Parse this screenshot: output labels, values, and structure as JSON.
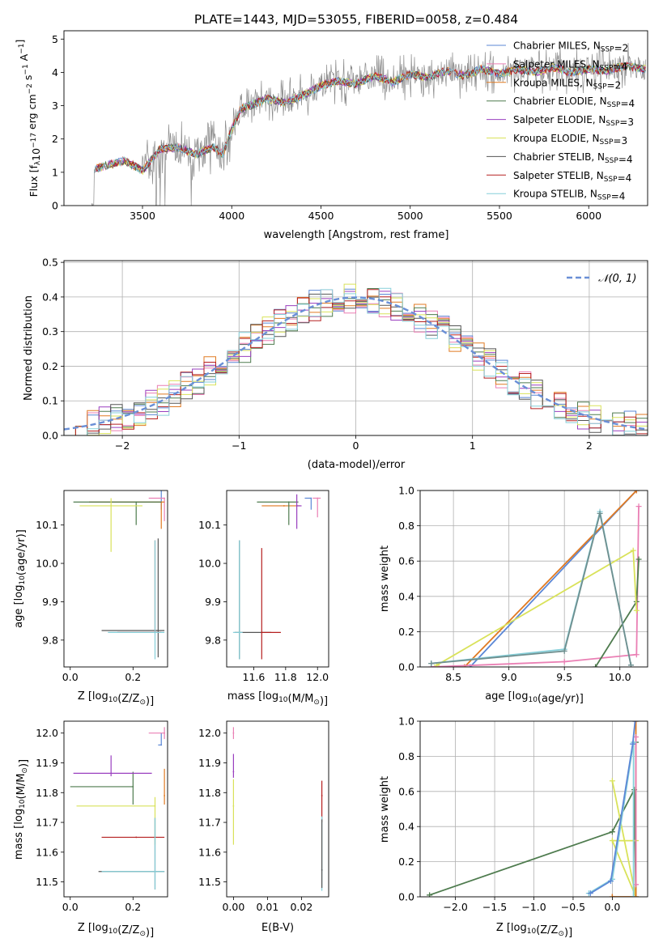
{
  "figure": {
    "title": "PLATE=1443, MJD=53055, FIBERID=0058, z=0.484"
  },
  "legend_models": [
    {
      "name": "Chabrier MILES, N",
      "sub": "SSP",
      "tail": "=2",
      "color": "#5b87d6"
    },
    {
      "name": "Salpeter MILES, N",
      "sub": "SSP",
      "tail": "=4",
      "color": "#ea7fb4"
    },
    {
      "name": "Kroupa MILES, N",
      "sub": "SSP",
      "tail": "=2",
      "color": "#e07a22"
    },
    {
      "name": "Chabrier ELODIE, N",
      "sub": "SSP",
      "tail": "=4",
      "color": "#4e7b4e"
    },
    {
      "name": "Salpeter ELODIE, N",
      "sub": "SSP",
      "tail": "=3",
      "color": "#9a3fbf"
    },
    {
      "name": "Kroupa ELODIE, N",
      "sub": "SSP",
      "tail": "=3",
      "color": "#d9e25a"
    },
    {
      "name": "Chabrier STELIB, N",
      "sub": "SSP",
      "tail": "=4",
      "color": "#555555"
    },
    {
      "name": "Salpeter STELIB, N",
      "sub": "SSP",
      "tail": "=4",
      "color": "#b52020"
    },
    {
      "name": "Kroupa STELIB, N",
      "sub": "SSP",
      "tail": "=4",
      "color": "#86cfd9"
    }
  ],
  "chart_data": [
    {
      "id": "spectrum",
      "type": "line",
      "xlabel": "wavelength [Angstrom, rest frame]",
      "ylabel_main": "Flux [f",
      "ylabel_sub": "λ",
      "ylabel_mid": "10",
      "ylabel_sup1": "−17",
      "ylabel_rest": " erg cm",
      "ylabel_sup2": "−2",
      "ylabel_s": " s",
      "ylabel_sup3": "−1",
      "ylabel_end": " A",
      "ylabel_sup4": "−1",
      "ylabel_close": "]",
      "xlim": [
        3060,
        6330
      ],
      "ylim": [
        0,
        5.25
      ],
      "xticks": [
        3500,
        4000,
        4500,
        5000,
        5500,
        6000
      ],
      "yticks": [
        0,
        1,
        2,
        3,
        4,
        5
      ],
      "model_x": [
        3230,
        3300,
        3400,
        3500,
        3600,
        3700,
        3800,
        3900,
        3950,
        4000,
        4050,
        4100,
        4200,
        4300,
        4400,
        4500,
        4600,
        4700,
        4800,
        4900,
        5000,
        5100,
        5200,
        5300,
        5400,
        5500,
        5600,
        5700,
        5800,
        5900,
        6000,
        6100,
        6200,
        6300
      ],
      "model_y": [
        1.1,
        1.2,
        1.35,
        1.05,
        1.7,
        1.75,
        1.55,
        1.75,
        1.55,
        2.3,
        2.9,
        3.0,
        3.2,
        3.1,
        3.3,
        3.6,
        3.75,
        3.65,
        3.9,
        3.7,
        3.95,
        3.85,
        4.05,
        3.9,
        4.1,
        3.95,
        4.1,
        4.0,
        4.15,
        4.0,
        4.1,
        4.05,
        4.2,
        4.1
      ]
    },
    {
      "id": "residuals",
      "type": "step",
      "xlabel": "(data-model)/error",
      "ylabel": "Normed distribution",
      "legend": "𝒩(0, 1)",
      "xlim": [
        -2.5,
        2.5
      ],
      "ylim": [
        0,
        0.505
      ],
      "xticks": [
        -2,
        -1,
        0,
        1,
        2
      ],
      "xticklabels": [
        "−2",
        "−1",
        "0",
        "1",
        "2"
      ],
      "yticks": [
        0,
        0.1,
        0.2,
        0.3,
        0.4,
        0.5
      ],
      "yticklabels": [
        "0.0",
        "0.1",
        "0.2",
        "0.3",
        "0.4",
        "0.5"
      ],
      "bin_width": 0.1
    },
    {
      "id": "age_vs_Z",
      "type": "errorbar",
      "xlabel": "Z [log",
      "xlabel_sub": "10",
      "xlabel_rest": "(Z/Z",
      "xlabel_sub2": "⊙",
      "xlabel_close": ")]",
      "ylabel": "age  [log",
      "ylabel_sub": "10",
      "ylabel_rest": "(age/yr)]",
      "xlim": [
        -0.02,
        0.31
      ],
      "ylim": [
        9.73,
        10.19
      ],
      "xticks": [
        0.0,
        0.2
      ],
      "xticklabels": [
        "0.0",
        "0.2"
      ],
      "yticks": [
        9.8,
        9.9,
        10.0,
        10.1
      ],
      "yticklabels": [
        "9.8",
        "9.9",
        "10.0",
        "10.1"
      ],
      "points": [
        {
          "x": 0.29,
          "y": 10.16,
          "xerr": [
            0.23,
            0.0
          ],
          "yerr": [
            0.02,
            0.03
          ],
          "color": "#5b87d6"
        },
        {
          "x": 0.3,
          "y": 10.17,
          "xerr": [
            0.05,
            0.0
          ],
          "yerr": [
            0.06,
            0.0
          ],
          "color": "#ea7fb4"
        },
        {
          "x": 0.29,
          "y": 10.16,
          "xerr": [
            0.23,
            0.01
          ],
          "yerr": [
            0.07,
            0.0
          ],
          "color": "#e07a22"
        },
        {
          "x": 0.21,
          "y": 10.16,
          "xerr": [
            0.2,
            0.08
          ],
          "yerr": [
            0.06,
            0.0
          ],
          "color": "#4e7b4e"
        },
        {
          "x": 0.28,
          "y": 9.825,
          "xerr": [
            0.18,
            0.02
          ],
          "yerr": [
            0.07,
            0.24
          ],
          "color": "#555555"
        },
        {
          "x": 0.27,
          "y": 9.82,
          "xerr": [
            0.12,
            0.02
          ],
          "yerr": [
            0.0,
            0.24
          ],
          "color": "#b52020"
        },
        {
          "x": 0.13,
          "y": 10.15,
          "xerr": [
            0.1,
            0.1
          ],
          "yerr": [
            0.12,
            0.02
          ],
          "color": "#d9e25a"
        },
        {
          "x": 0.27,
          "y": 9.82,
          "xerr": [
            0.15,
            0.03
          ],
          "yerr": [
            0.07,
            0.24
          ],
          "color": "#86cfd9"
        }
      ]
    },
    {
      "id": "age_vs_mass",
      "type": "errorbar",
      "xlabel": "mass [log",
      "xlabel_sub": "10",
      "xlabel_rest": "(M/M",
      "xlabel_sub2": "⊙",
      "xlabel_close": ")]",
      "xlim": [
        11.43,
        12.07
      ],
      "ylim": [
        9.73,
        10.19
      ],
      "xticks": [
        11.6,
        11.8,
        12.0
      ],
      "xticklabels": [
        "11.6",
        "11.8",
        "12.0"
      ],
      "yticks": [
        9.8,
        9.9,
        10.0,
        10.1
      ],
      "yticklabels": [
        "9.8",
        "9.9",
        "10.0",
        "10.1"
      ],
      "points": [
        {
          "x": 11.96,
          "y": 10.17,
          "xerr": [
            0.04,
            0.0
          ],
          "yerr": [
            0.03,
            0.0
          ],
          "color": "#5b87d6"
        },
        {
          "x": 12.0,
          "y": 10.17,
          "xerr": [
            0.03,
            0.02
          ],
          "yerr": [
            0.05,
            0.0
          ],
          "color": "#ea7fb4"
        },
        {
          "x": 11.79,
          "y": 10.15,
          "xerr": [
            0.14,
            0.1
          ],
          "yerr": [
            0.0,
            0.0
          ],
          "color": "#e07a22"
        },
        {
          "x": 11.82,
          "y": 10.16,
          "xerr": [
            0.2,
            0.06
          ],
          "yerr": [
            0.06,
            0.0
          ],
          "color": "#4e7b4e"
        },
        {
          "x": 11.87,
          "y": 10.15,
          "xerr": [
            0.0,
            0.03
          ],
          "yerr": [
            0.06,
            0.03
          ],
          "color": "#9a3fbf"
        },
        {
          "x": 11.51,
          "y": 9.82,
          "xerr": [
            0.03,
            0.2
          ],
          "yerr": [
            0.07,
            0.24
          ],
          "color": "#555555"
        },
        {
          "x": 11.65,
          "y": 9.82,
          "xerr": [
            0.0,
            0.12
          ],
          "yerr": [
            0.07,
            0.22
          ],
          "color": "#b52020"
        },
        {
          "x": 11.51,
          "y": 9.82,
          "xerr": [
            0.04,
            0.02
          ],
          "yerr": [
            0.07,
            0.24
          ],
          "color": "#86cfd9"
        }
      ]
    },
    {
      "id": "weight_vs_age",
      "type": "line",
      "xlabel": "age  [log",
      "xlabel_sub": "10",
      "xlabel_rest": "(age/yr)]",
      "ylabel": "mass weight",
      "xlim": [
        8.2,
        10.25
      ],
      "ylim": [
        0,
        1.0
      ],
      "xticks": [
        8.5,
        9.0,
        9.5,
        10.0
      ],
      "xticklabels": [
        "8.5",
        "9.0",
        "9.5",
        "10.0"
      ],
      "yticks": [
        0,
        0.2,
        0.4,
        0.6,
        0.8,
        1.0
      ],
      "yticklabels": [
        "0.0",
        "0.2",
        "0.4",
        "0.6",
        "0.8",
        "1.0"
      ],
      "series": [
        {
          "color": "#5b87d6",
          "x": [
            8.65,
            10.15
          ],
          "y": [
            0.0,
            1.0
          ]
        },
        {
          "color": "#e07a22",
          "x": [
            8.6,
            10.15
          ],
          "y": [
            0.0,
            1.0
          ]
        },
        {
          "color": "#ea7fb4",
          "x": [
            8.3,
            9.5,
            10.15,
            10.17
          ],
          "y": [
            0.0,
            0.03,
            0.07,
            0.91
          ]
        },
        {
          "color": "#4e7b4e",
          "x": [
            9.78,
            10.15,
            10.17
          ],
          "y": [
            0.0,
            0.37,
            0.61
          ]
        },
        {
          "color": "#d9e25a",
          "x": [
            8.35,
            10.12,
            10.15
          ],
          "y": [
            0.01,
            0.66,
            0.32
          ]
        },
        {
          "color": "#86cfd9",
          "x": [
            8.3,
            9.5,
            9.82,
            10.1
          ],
          "y": [
            0.02,
            0.1,
            0.88,
            0.01
          ]
        },
        {
          "color": "#6f8f8f",
          "x": [
            8.3,
            9.5,
            9.82,
            10.1
          ],
          "y": [
            0.02,
            0.09,
            0.87,
            0.01
          ]
        }
      ]
    },
    {
      "id": "mass_vs_Z",
      "type": "errorbar",
      "xlabel": "Z [log",
      "xlabel_sub": "10",
      "xlabel_rest": "(Z/Z",
      "xlabel_sub2": "⊙",
      "xlabel_close": ")]",
      "ylabel": "mass [log",
      "ylabel_sub": "10",
      "ylabel_rest": "(M/M",
      "ylabel_sub2": "⊙",
      "ylabel_close": ")]",
      "xlim": [
        -0.02,
        0.31
      ],
      "ylim": [
        11.45,
        12.04
      ],
      "xticks": [
        0.0,
        0.2
      ],
      "xticklabels": [
        "0.0",
        "0.2"
      ],
      "yticks": [
        11.5,
        11.6,
        11.7,
        11.8,
        11.9,
        12.0
      ],
      "yticklabels": [
        "11.5",
        "11.6",
        "11.7",
        "11.8",
        "11.9",
        "12.0"
      ],
      "points": [
        {
          "x": 0.29,
          "y": 11.96,
          "xerr": [
            0.01,
            0.0
          ],
          "yerr": [
            0.0,
            0.04
          ],
          "color": "#5b87d6"
        },
        {
          "x": 0.3,
          "y": 12.0,
          "xerr": [
            0.05,
            0.0
          ],
          "yerr": [
            0.02,
            0.02
          ],
          "color": "#ea7fb4"
        },
        {
          "x": 0.3,
          "y": 11.79,
          "xerr": [
            0.0,
            0.0
          ],
          "yerr": [
            0.03,
            0.09
          ],
          "color": "#e07a22"
        },
        {
          "x": 0.2,
          "y": 11.82,
          "xerr": [
            0.2,
            0.0
          ],
          "yerr": [
            0.06,
            0.05
          ],
          "color": "#4e7b4e"
        },
        {
          "x": 0.13,
          "y": 11.865,
          "xerr": [
            0.12,
            0.13
          ],
          "yerr": [
            0.01,
            0.06
          ],
          "color": "#9a3fbf"
        },
        {
          "x": 0.27,
          "y": 11.755,
          "xerr": [
            0.25,
            0.0
          ],
          "yerr": [
            0.13,
            0.03
          ],
          "color": "#d9e25a"
        },
        {
          "x": 0.27,
          "y": 11.535,
          "xerr": [
            0.18,
            0.03
          ],
          "yerr": [
            0.06,
            0.18
          ],
          "color": "#555555"
        },
        {
          "x": 0.21,
          "y": 11.65,
          "xerr": [
            0.11,
            0.09
          ],
          "yerr": [
            0.0,
            0.0
          ],
          "color": "#b52020"
        },
        {
          "x": 0.27,
          "y": 11.535,
          "xerr": [
            0.17,
            0.03
          ],
          "yerr": [
            0.06,
            0.18
          ],
          "color": "#86cfd9"
        }
      ]
    },
    {
      "id": "mass_vs_EBV",
      "type": "errorbar",
      "xlabel": "E(B-V)",
      "xlim": [
        -0.002,
        0.028
      ],
      "ylim": [
        11.45,
        12.04
      ],
      "xticks": [
        0.0,
        0.01,
        0.02
      ],
      "xticklabels": [
        "0.00",
        "0.01",
        "0.02"
      ],
      "yticks": [
        11.5,
        11.6,
        11.7,
        11.8,
        11.9,
        12.0
      ],
      "yticklabels": [
        "11.5",
        "11.6",
        "11.7",
        "11.8",
        "11.9",
        "12.0"
      ],
      "points": [
        {
          "x": 0.0,
          "y": 12.0,
          "xerr": [
            0,
            0
          ],
          "yerr": [
            0.02,
            0.02
          ],
          "color": "#ea7fb4"
        },
        {
          "x": 0.0,
          "y": 11.87,
          "xerr": [
            0,
            0
          ],
          "yerr": [
            0.02,
            0.06
          ],
          "color": "#9a3fbf"
        },
        {
          "x": 0.0,
          "y": 11.755,
          "xerr": [
            0,
            0
          ],
          "yerr": [
            0.13,
            0.09
          ],
          "color": "#d9e25a"
        },
        {
          "x": 0.026,
          "y": 11.79,
          "xerr": [
            0,
            0
          ],
          "yerr": [
            0.09,
            0.05
          ],
          "color": "#b52020"
        },
        {
          "x": 0.026,
          "y": 11.54,
          "xerr": [
            0,
            0
          ],
          "yerr": [
            0.07,
            0.18
          ],
          "color": "#86cfd9"
        },
        {
          "x": 0.026,
          "y": 11.54,
          "xerr": [
            0,
            0
          ],
          "yerr": [
            0.06,
            0.17
          ],
          "color": "#555555"
        }
      ]
    },
    {
      "id": "weight_vs_Z",
      "type": "line",
      "xlabel": "Z [log",
      "xlabel_sub": "10",
      "xlabel_rest": "(Z/Z",
      "xlabel_sub2": "⊙",
      "xlabel_close": ")]",
      "ylabel": "mass weight",
      "xlim": [
        -2.45,
        0.45
      ],
      "ylim": [
        0,
        1.0
      ],
      "xticks": [
        -2.0,
        -1.5,
        -1.0,
        -0.5,
        0.0
      ],
      "xticklabels": [
        "−2.0",
        "−1.5",
        "−1.0",
        "−0.5",
        "0.0"
      ],
      "yticks": [
        0,
        0.2,
        0.4,
        0.6,
        0.8,
        1.0
      ],
      "yticklabels": [
        "0.0",
        "0.2",
        "0.4",
        "0.6",
        "0.8",
        "1.0"
      ],
      "series": [
        {
          "color": "#4e7b4e",
          "x": [
            -2.33,
            0.0,
            0.28,
            0.3,
            0.3
          ],
          "y": [
            0.01,
            0.37,
            0.61,
            0.0,
            0.88
          ]
        },
        {
          "color": "#d9e25a",
          "x": [
            0.0,
            0.3,
            0.0,
            0.3
          ],
          "y": [
            0.66,
            0.0,
            0.32,
            0.32
          ]
        },
        {
          "color": "#e07a22",
          "x": [
            0.0,
            0.0,
            0.3,
            0.3
          ],
          "y": [
            0.0,
            0.0,
            0.0,
            1.0
          ]
        },
        {
          "color": "#ea7fb4",
          "x": [
            0.3,
            0.3
          ],
          "y": [
            0.07,
            0.91
          ]
        },
        {
          "color": "#86cfd9",
          "x": [
            -0.3,
            0.0,
            0.27,
            0.27
          ],
          "y": [
            0.02,
            0.1,
            0.88,
            0.0
          ]
        },
        {
          "color": "#5b87d6",
          "x": [
            -0.28,
            -0.02,
            0.26,
            0.29
          ],
          "y": [
            0.02,
            0.09,
            0.87,
            1.0
          ]
        }
      ]
    }
  ]
}
